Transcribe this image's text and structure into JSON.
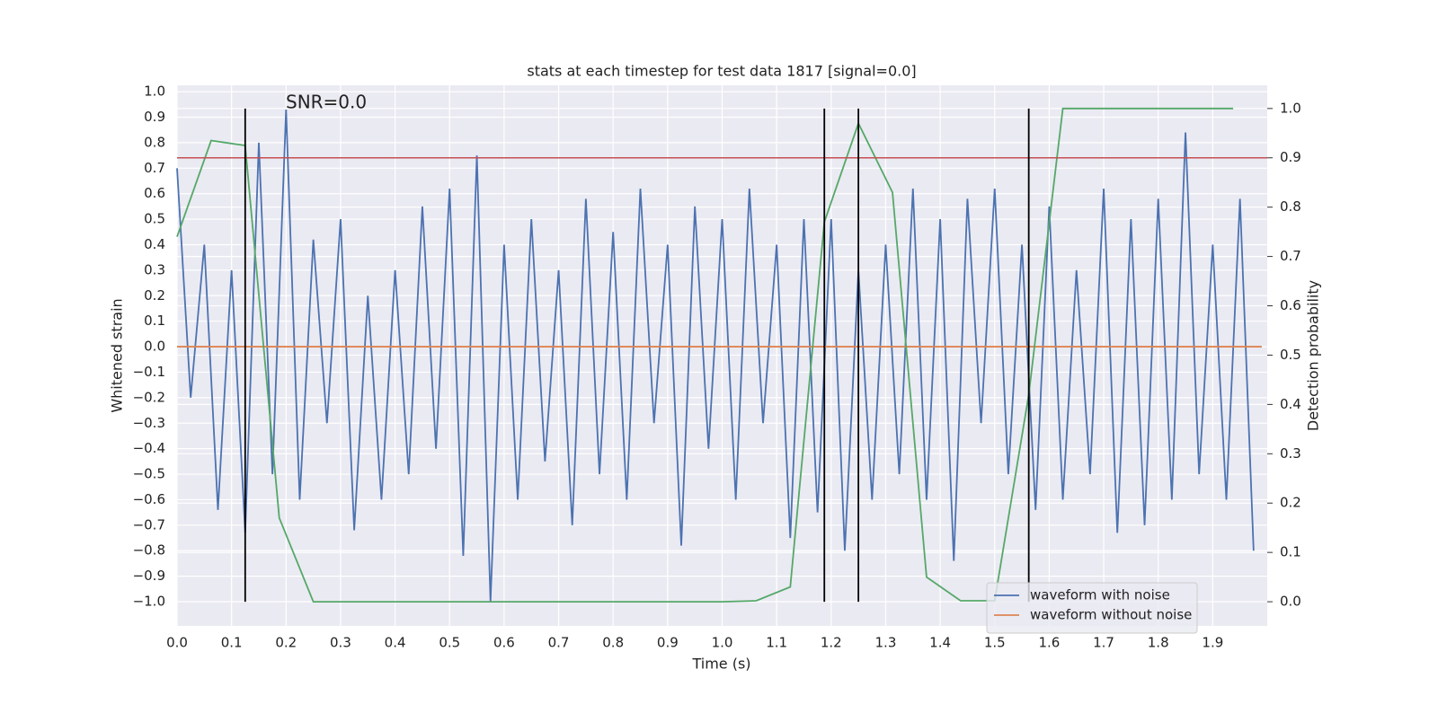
{
  "chart_data": {
    "type": "line",
    "title": "stats at each timestep for test data 1817 [signal=0.0]",
    "annotation": "SNR=0.0",
    "x_label": "Time (s)",
    "y_label": "Whitened strain",
    "y2_label": "Detection probability",
    "xlim": [
      0,
      2
    ],
    "ylim": [
      -1.095,
      1.025
    ],
    "y2lim": [
      -0.049,
      1.047
    ],
    "xticks": [
      {
        "value": 0,
        "label": "0.0"
      },
      0.1,
      0.2,
      0.3,
      0.4,
      0.5,
      0.6,
      0.7,
      0.8,
      0.9,
      {
        "value": 1,
        "label": "1.0"
      },
      1.1,
      1.2,
      1.3,
      1.4,
      1.5,
      1.6,
      1.7,
      1.8,
      1.9
    ],
    "yticks": [
      {
        "value": -1,
        "label": "−1.0"
      },
      {
        "value": -0.9,
        "label": "−0.9"
      },
      {
        "value": -0.8,
        "label": "−0.8"
      },
      {
        "value": -0.7,
        "label": "−0.7"
      },
      {
        "value": -0.6,
        "label": "−0.6"
      },
      {
        "value": -0.5,
        "label": "−0.5"
      },
      {
        "value": -0.4,
        "label": "−0.4"
      },
      {
        "value": -0.3,
        "label": "−0.3"
      },
      {
        "value": -0.2,
        "label": "−0.2"
      },
      {
        "value": -0.1,
        "label": "−0.1"
      },
      {
        "value": 0,
        "label": "0.0"
      },
      0.1,
      0.2,
      0.3,
      0.4,
      0.5,
      0.6,
      0.7,
      0.8,
      0.9,
      {
        "value": 1,
        "label": "1.0"
      }
    ],
    "y2ticks": [
      {
        "value": 0,
        "label": "0.0"
      },
      0.1,
      0.2,
      0.3,
      0.4,
      0.5,
      0.6,
      0.7,
      0.8,
      0.9,
      {
        "value": 1,
        "label": "1.0"
      }
    ],
    "grid": true,
    "legend": "lower right",
    "series": [
      {
        "name": "waveform with noise",
        "color": "#4c72b0",
        "x": [
          0,
          0.025,
          0.05,
          0.075,
          0.1,
          0.125,
          0.15,
          0.175,
          0.2,
          0.225,
          0.25,
          0.275,
          0.3,
          0.325,
          0.35,
          0.375,
          0.4,
          0.425,
          0.45,
          0.475,
          0.5,
          0.525,
          0.55,
          0.575,
          0.6,
          0.625,
          0.65,
          0.675,
          0.7,
          0.725,
          0.75,
          0.775,
          0.8,
          0.825,
          0.85,
          0.875,
          0.9,
          0.925,
          0.95,
          0.975,
          1,
          1.025,
          1.05,
          1.075,
          1.1,
          1.125,
          1.15,
          1.175,
          1.2,
          1.225,
          1.25,
          1.275,
          1.3,
          1.325,
          1.35,
          1.375,
          1.4,
          1.425,
          1.45,
          1.475,
          1.5,
          1.525,
          1.55,
          1.575,
          1.6,
          1.625,
          1.65,
          1.675,
          1.7,
          1.725,
          1.75,
          1.775,
          1.8,
          1.825,
          1.85,
          1.875,
          1.9,
          1.925,
          1.95,
          1.975
        ],
        "values": [
          0.7,
          -0.2,
          0.4,
          -0.64,
          0.3,
          -0.73,
          0.8,
          -0.5,
          0.93,
          -0.6,
          0.42,
          -0.3,
          0.5,
          -0.72,
          0.2,
          -0.6,
          0.3,
          -0.5,
          0.55,
          -0.4,
          0.62,
          -0.82,
          0.75,
          -1.0,
          0.4,
          -0.6,
          0.5,
          -0.45,
          0.3,
          -0.7,
          0.58,
          -0.5,
          0.45,
          -0.6,
          0.62,
          -0.3,
          0.4,
          -0.78,
          0.55,
          -0.4,
          0.5,
          -0.6,
          0.62,
          -0.3,
          0.4,
          -0.75,
          0.5,
          -0.65,
          0.5,
          -0.8,
          0.3,
          -0.6,
          0.4,
          -0.5,
          0.62,
          -0.6,
          0.5,
          -0.84,
          0.58,
          -0.3,
          0.62,
          -0.5,
          0.4,
          -0.64,
          0.55,
          -0.6,
          0.3,
          -0.5,
          0.62,
          -0.73,
          0.5,
          -0.7,
          0.58,
          -0.6,
          0.84,
          -0.5,
          0.4,
          -0.6,
          0.58,
          -0.8
        ]
      },
      {
        "name": "waveform without noise",
        "color": "#dd8452",
        "x": [
          0,
          1.99
        ],
        "values": [
          0,
          0
        ]
      },
      {
        "color": "#55a868",
        "axis": "y2",
        "x": [
          0,
          0.0625,
          0.125,
          0.1875,
          0.25,
          0.3125,
          0.375,
          0.4375,
          0.5,
          0.5625,
          0.625,
          0.6875,
          0.75,
          0.8125,
          0.875,
          0.9375,
          1,
          1.0625,
          1.125,
          1.1875,
          1.25,
          1.3125,
          1.375,
          1.4375,
          1.5,
          1.5625,
          1.625,
          1.6875,
          1.75,
          1.8125,
          1.875,
          1.9375
        ],
        "values": [
          0.74,
          0.935,
          0.925,
          0.17,
          0,
          0,
          0,
          0,
          0,
          0,
          0,
          0,
          0,
          0,
          0,
          0,
          0,
          0.002,
          0.03,
          0.77,
          0.97,
          0.83,
          0.05,
          0.002,
          0.002,
          0.42,
          1,
          1,
          1,
          1,
          1,
          1
        ]
      }
    ],
    "hlines": [
      {
        "value": 0.9,
        "axis": "y2",
        "color": "#c44e52"
      }
    ],
    "vlines": {
      "values": [
        0.125,
        1.1875,
        1.25,
        1.5625
      ],
      "axis": "y2",
      "ymin": 0,
      "ymax": 1,
      "color": "#000000"
    }
  }
}
